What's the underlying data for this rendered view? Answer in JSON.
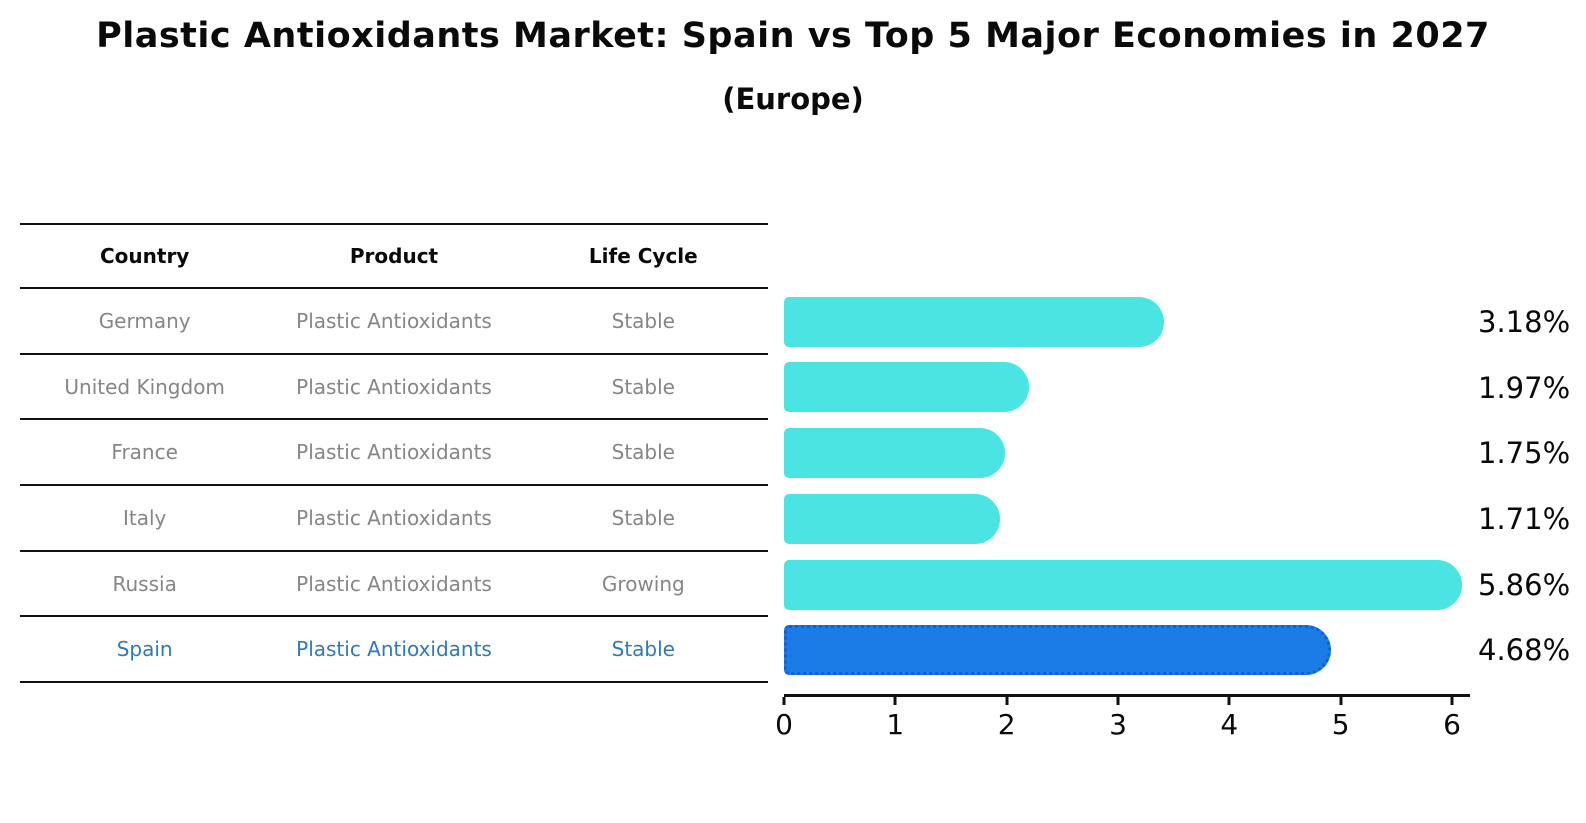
{
  "page": {
    "title": "Plastic Antioxidants Market: Spain vs Top 5 Major Economies in 2027",
    "subtitle": "(Europe)"
  },
  "table": {
    "headers": [
      "Country",
      "Product",
      "Life Cycle"
    ],
    "rows": [
      {
        "country": "Germany",
        "product": "Plastic Antioxidants",
        "life_cycle": "Stable",
        "highlight": false
      },
      {
        "country": "United Kingdom",
        "product": "Plastic Antioxidants",
        "life_cycle": "Stable",
        "highlight": false
      },
      {
        "country": "France",
        "product": "Plastic Antioxidants",
        "life_cycle": "Stable",
        "highlight": false
      },
      {
        "country": "Italy",
        "product": "Plastic Antioxidants",
        "life_cycle": "Stable",
        "highlight": false
      },
      {
        "country": "Russia",
        "product": "Plastic Antioxidants",
        "life_cycle": "Growing",
        "highlight": false
      },
      {
        "country": "Spain",
        "product": "Plastic Antioxidants",
        "life_cycle": "Stable",
        "highlight": true
      }
    ]
  },
  "chart_data": {
    "type": "bar",
    "orientation": "horizontal",
    "title": "Plastic Antioxidants Market: Spain vs Top 5 Major Economies in 2027",
    "subtitle": "(Europe)",
    "categories": [
      "Germany",
      "United Kingdom",
      "France",
      "Italy",
      "Russia",
      "Spain"
    ],
    "values": [
      3.18,
      1.97,
      1.75,
      1.71,
      5.86,
      4.68
    ],
    "value_labels": [
      "3.18%",
      "1.97%",
      "1.75%",
      "1.71%",
      "5.86%",
      "4.68%"
    ],
    "xlim": [
      0,
      6.2
    ],
    "xticks": [
      "0",
      "1",
      "2",
      "3",
      "4",
      "5",
      "6"
    ],
    "grid": false,
    "legend": false,
    "highlight_index": 5
  },
  "colors": {
    "bar": "#4ae4e2",
    "highlight_bar": "#1b7ce8",
    "highlight_border": "#0f62cf",
    "row_text": "#868686",
    "highlight_text": "#2b79c2",
    "label_text": "#0a0a0a"
  }
}
